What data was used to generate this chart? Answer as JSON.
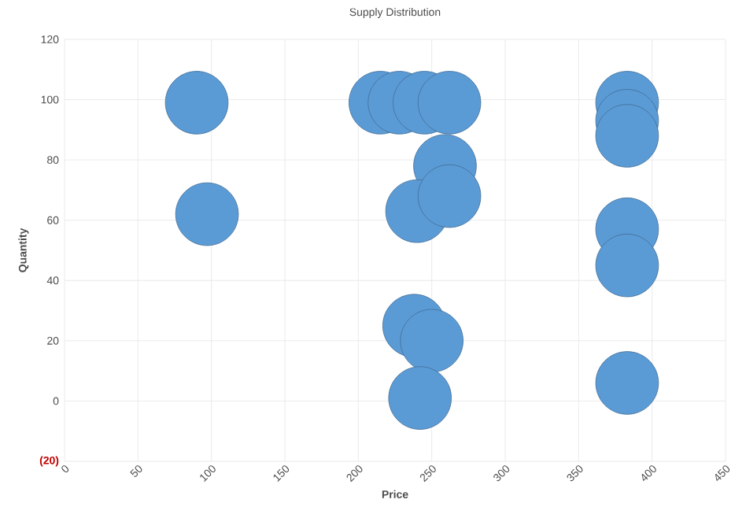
{
  "chart_data": {
    "type": "bubble",
    "title": "Supply Distribution",
    "xlabel": "Price",
    "ylabel": "Quantity",
    "color": "#5b9bd5",
    "x": [
      90,
      97,
      215,
      228,
      245,
      262,
      259,
      240,
      262,
      383,
      383,
      383,
      383,
      383,
      238,
      250,
      242,
      383
    ],
    "values": [
      99,
      62,
      99,
      99,
      99,
      99,
      78,
      63,
      68,
      99,
      93,
      88,
      57,
      45,
      25,
      20,
      1,
      6
    ],
    "sizes": [
      1,
      1,
      1,
      1,
      1,
      1,
      1,
      1,
      1,
      1,
      1,
      1,
      1,
      1,
      1,
      1,
      1,
      1
    ],
    "xlim": [
      0,
      450
    ],
    "xticks": [
      0,
      50,
      100,
      150,
      200,
      250,
      300,
      350,
      400,
      450
    ],
    "ylim": [
      -20,
      120
    ],
    "yticks": [
      {
        "value": -20,
        "label": "(20)"
      },
      0,
      20,
      40,
      60,
      80,
      100,
      120
    ],
    "grid": true
  }
}
